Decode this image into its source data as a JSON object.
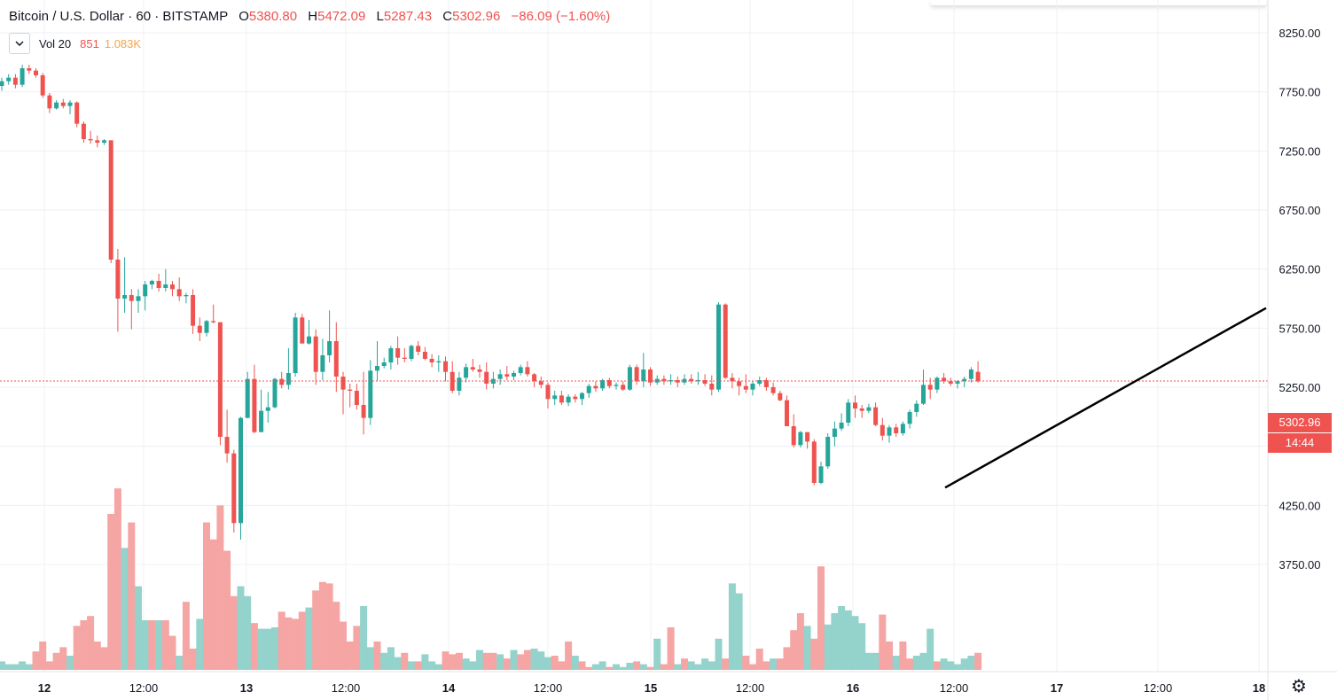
{
  "legend": {
    "symbol": "Bitcoin / U.S. Dollar · 60 · BITSTAMP",
    "open_label": "O",
    "open": "5380.80",
    "high_label": "H",
    "high": "5472.09",
    "low_label": "L",
    "low": "5287.43",
    "close_label": "C",
    "close": "5302.96",
    "change": "−86.09 (−1.60%)"
  },
  "volume_legend": {
    "collapse_icon": "chevron-down-icon",
    "name": "Vol 20",
    "value": "851",
    "ma": "1.083K"
  },
  "price_badge": {
    "price": "5302.96",
    "countdown": "14:44"
  },
  "settings_icon": "gear-icon",
  "colors": {
    "up": "#26a69a",
    "down": "#ef5350",
    "up_vol": "#93d3cc",
    "down_vol": "#f5a5a3",
    "trendline": "#000000"
  },
  "chart_data": {
    "type": "candlestick",
    "title": "Bitcoin / U.S. Dollar · 60 · BITSTAMP",
    "ylim": [
      3500,
      8400
    ],
    "y_ticks": [
      "8250.00",
      "7750.00",
      "7250.00",
      "6750.00",
      "6250.00",
      "5750.00",
      "5250.00",
      "4750.00",
      "4250.00",
      "3750.00"
    ],
    "x_ticks": [
      "12",
      "12:00",
      "13",
      "12:00",
      "14",
      "12:00",
      "15",
      "12:00",
      "16",
      "12:00",
      "17",
      "12:00",
      "18"
    ],
    "last_price": 5302.96,
    "candles": [
      [
        7800,
        7870,
        7760,
        7840
      ],
      [
        7840,
        7900,
        7810,
        7870
      ],
      [
        7870,
        7900,
        7780,
        7810
      ],
      [
        7810,
        7980,
        7790,
        7950
      ],
      [
        7950,
        7980,
        7900,
        7930
      ],
      [
        7930,
        7950,
        7870,
        7890
      ],
      [
        7890,
        7910,
        7700,
        7720
      ],
      [
        7720,
        7740,
        7570,
        7610
      ],
      [
        7610,
        7680,
        7600,
        7660
      ],
      [
        7660,
        7690,
        7610,
        7630
      ],
      [
        7630,
        7680,
        7560,
        7660
      ],
      [
        7660,
        7670,
        7450,
        7480
      ],
      [
        7480,
        7500,
        7320,
        7350
      ],
      [
        7350,
        7420,
        7310,
        7340
      ],
      [
        7340,
        7380,
        7280,
        7320
      ],
      [
        7320,
        7350,
        7300,
        7340
      ],
      [
        7340,
        7340,
        6300,
        6330
      ],
      [
        6330,
        6420,
        5720,
        6000
      ],
      [
        6000,
        6350,
        5880,
        6030
      ],
      [
        6030,
        6080,
        5740,
        5980
      ],
      [
        5980,
        6080,
        5880,
        6020
      ],
      [
        6020,
        6150,
        5900,
        6120
      ],
      [
        6120,
        6160,
        6080,
        6150
      ],
      [
        6150,
        6210,
        6060,
        6090
      ],
      [
        6090,
        6250,
        6060,
        6120
      ],
      [
        6120,
        6150,
        6020,
        6080
      ],
      [
        6080,
        6180,
        5980,
        6020
      ],
      [
        6020,
        6050,
        5960,
        6030
      ],
      [
        6030,
        6080,
        5700,
        5770
      ],
      [
        5770,
        5840,
        5640,
        5710
      ],
      [
        5710,
        5820,
        5680,
        5810
      ],
      [
        5810,
        5950,
        5790,
        5800
      ],
      [
        5800,
        5800,
        4760,
        4830
      ],
      [
        4830,
        5060,
        4610,
        4690
      ],
      [
        4690,
        4720,
        4020,
        4100
      ],
      [
        4100,
        5000,
        3960,
        4990
      ],
      [
        4990,
        5380,
        4990,
        5320
      ],
      [
        5320,
        5440,
        4860,
        4870
      ],
      [
        4870,
        5230,
        4870,
        5050
      ],
      [
        5050,
        5210,
        4950,
        5080
      ],
      [
        5080,
        5330,
        5070,
        5320
      ],
      [
        5320,
        5380,
        5240,
        5270
      ],
      [
        5270,
        5580,
        5230,
        5370
      ],
      [
        5370,
        5880,
        5340,
        5840
      ],
      [
        5840,
        5870,
        5620,
        5620
      ],
      [
        5620,
        5820,
        5610,
        5680
      ],
      [
        5680,
        5740,
        5270,
        5380
      ],
      [
        5380,
        5660,
        5310,
        5520
      ],
      [
        5520,
        5900,
        5460,
        5640
      ],
      [
        5640,
        5800,
        5210,
        5340
      ],
      [
        5340,
        5380,
        5020,
        5230
      ],
      [
        5230,
        5280,
        5080,
        5220
      ],
      [
        5220,
        5280,
        5060,
        5100
      ],
      [
        5100,
        5380,
        4850,
        4990
      ],
      [
        4990,
        5480,
        4930,
        5390
      ],
      [
        5390,
        5640,
        5300,
        5430
      ],
      [
        5430,
        5500,
        5410,
        5460
      ],
      [
        5460,
        5600,
        5400,
        5580
      ],
      [
        5580,
        5680,
        5440,
        5500
      ],
      [
        5500,
        5580,
        5460,
        5490
      ],
      [
        5490,
        5610,
        5470,
        5600
      ],
      [
        5600,
        5640,
        5520,
        5550
      ],
      [
        5550,
        5590,
        5480,
        5490
      ],
      [
        5490,
        5530,
        5420,
        5460
      ],
      [
        5460,
        5520,
        5380,
        5470
      ],
      [
        5470,
        5510,
        5300,
        5380
      ],
      [
        5380,
        5470,
        5200,
        5220
      ],
      [
        5220,
        5380,
        5180,
        5330
      ],
      [
        5330,
        5450,
        5290,
        5420
      ],
      [
        5420,
        5490,
        5380,
        5400
      ],
      [
        5400,
        5440,
        5330,
        5380
      ],
      [
        5380,
        5460,
        5230,
        5280
      ],
      [
        5280,
        5380,
        5240,
        5320
      ],
      [
        5320,
        5400,
        5270,
        5360
      ],
      [
        5360,
        5430,
        5310,
        5340
      ],
      [
        5340,
        5390,
        5310,
        5370
      ],
      [
        5370,
        5440,
        5350,
        5420
      ],
      [
        5420,
        5470,
        5340,
        5360
      ],
      [
        5360,
        5370,
        5250,
        5300
      ],
      [
        5300,
        5340,
        5240,
        5270
      ],
      [
        5270,
        5290,
        5070,
        5150
      ],
      [
        5150,
        5220,
        5100,
        5180
      ],
      [
        5180,
        5220,
        5100,
        5120
      ],
      [
        5120,
        5190,
        5090,
        5170
      ],
      [
        5170,
        5190,
        5120,
        5150
      ],
      [
        5150,
        5210,
        5100,
        5200
      ],
      [
        5200,
        5280,
        5160,
        5260
      ],
      [
        5260,
        5300,
        5210,
        5240
      ],
      [
        5240,
        5320,
        5220,
        5310
      ],
      [
        5310,
        5330,
        5240,
        5260
      ],
      [
        5260,
        5290,
        5230,
        5270
      ],
      [
        5270,
        5300,
        5220,
        5230
      ],
      [
        5230,
        5440,
        5220,
        5420
      ],
      [
        5420,
        5440,
        5270,
        5300
      ],
      [
        5300,
        5540,
        5250,
        5400
      ],
      [
        5400,
        5420,
        5260,
        5290
      ],
      [
        5290,
        5350,
        5270,
        5320
      ],
      [
        5320,
        5350,
        5270,
        5300
      ],
      [
        5300,
        5360,
        5270,
        5310
      ],
      [
        5310,
        5340,
        5250,
        5290
      ],
      [
        5290,
        5360,
        5270,
        5320
      ],
      [
        5320,
        5360,
        5280,
        5300
      ],
      [
        5300,
        5380,
        5270,
        5310
      ],
      [
        5310,
        5360,
        5260,
        5280
      ],
      [
        5280,
        5350,
        5180,
        5230
      ],
      [
        5230,
        5970,
        5210,
        5950
      ],
      [
        5950,
        5960,
        5320,
        5330
      ],
      [
        5330,
        5370,
        5240,
        5300
      ],
      [
        5300,
        5330,
        5180,
        5260
      ],
      [
        5260,
        5360,
        5200,
        5230
      ],
      [
        5230,
        5300,
        5180,
        5280
      ],
      [
        5280,
        5340,
        5260,
        5310
      ],
      [
        5310,
        5330,
        5220,
        5250
      ],
      [
        5250,
        5290,
        5180,
        5200
      ],
      [
        5200,
        5220,
        5130,
        5140
      ],
      [
        5140,
        5180,
        4930,
        4920
      ],
      [
        4920,
        5020,
        4740,
        4760
      ],
      [
        4760,
        4880,
        4740,
        4870
      ],
      [
        4870,
        4870,
        4730,
        4790
      ],
      [
        4790,
        4810,
        4420,
        4440
      ],
      [
        4440,
        4620,
        4430,
        4580
      ],
      [
        4580,
        4860,
        4560,
        4830
      ],
      [
        4830,
        4960,
        4750,
        4900
      ],
      [
        4900,
        5030,
        4880,
        4950
      ],
      [
        4950,
        5150,
        4920,
        5120
      ],
      [
        5120,
        5180,
        4990,
        5070
      ],
      [
        5070,
        5100,
        4990,
        5050
      ],
      [
        5050,
        5110,
        5030,
        5080
      ],
      [
        5080,
        5120,
        4920,
        4930
      ],
      [
        4930,
        4990,
        4800,
        4840
      ],
      [
        4840,
        4930,
        4780,
        4910
      ],
      [
        4910,
        4940,
        4830,
        4860
      ],
      [
        4860,
        4960,
        4840,
        4940
      ],
      [
        4940,
        5060,
        4900,
        5040
      ],
      [
        5040,
        5140,
        5000,
        5110
      ],
      [
        5110,
        5400,
        5100,
        5270
      ],
      [
        5270,
        5330,
        5150,
        5230
      ],
      [
        5230,
        5340,
        5200,
        5330
      ],
      [
        5330,
        5370,
        5280,
        5300
      ],
      [
        5300,
        5330,
        5260,
        5280
      ],
      [
        5280,
        5310,
        5240,
        5300
      ],
      [
        5300,
        5340,
        5250,
        5320
      ],
      [
        5320,
        5420,
        5290,
        5400
      ],
      [
        5380,
        5470,
        5290,
        5300
      ]
    ],
    "volumes": [
      [
        60,
        "u"
      ],
      [
        40,
        "u"
      ],
      [
        40,
        "u"
      ],
      [
        60,
        "u"
      ],
      [
        40,
        "u"
      ],
      [
        130,
        "d"
      ],
      [
        200,
        "d"
      ],
      [
        60,
        "d"
      ],
      [
        120,
        "d"
      ],
      [
        160,
        "d"
      ],
      [
        100,
        "u"
      ],
      [
        310,
        "d"
      ],
      [
        350,
        "d"
      ],
      [
        380,
        "d"
      ],
      [
        200,
        "d"
      ],
      [
        160,
        "d"
      ],
      [
        1100,
        "d"
      ],
      [
        1280,
        "d"
      ],
      [
        860,
        "u"
      ],
      [
        1040,
        "d"
      ],
      [
        590,
        "u"
      ],
      [
        350,
        "u"
      ],
      [
        350,
        "d"
      ],
      [
        350,
        "u"
      ],
      [
        350,
        "d"
      ],
      [
        240,
        "d"
      ],
      [
        100,
        "u"
      ],
      [
        480,
        "d"
      ],
      [
        150,
        "d"
      ],
      [
        360,
        "u"
      ],
      [
        1040,
        "d"
      ],
      [
        920,
        "d"
      ],
      [
        1160,
        "d"
      ],
      [
        840,
        "d"
      ],
      [
        520,
        "d"
      ],
      [
        590,
        "u"
      ],
      [
        520,
        "u"
      ],
      [
        330,
        "d"
      ],
      [
        290,
        "u"
      ],
      [
        290,
        "u"
      ],
      [
        300,
        "u"
      ],
      [
        410,
        "d"
      ],
      [
        370,
        "d"
      ],
      [
        360,
        "d"
      ],
      [
        410,
        "d"
      ],
      [
        440,
        "u"
      ],
      [
        560,
        "d"
      ],
      [
        620,
        "d"
      ],
      [
        610,
        "d"
      ],
      [
        480,
        "d"
      ],
      [
        340,
        "d"
      ],
      [
        200,
        "d"
      ],
      [
        310,
        "d"
      ],
      [
        450,
        "u"
      ],
      [
        160,
        "u"
      ],
      [
        200,
        "d"
      ],
      [
        120,
        "u"
      ],
      [
        160,
        "u"
      ],
      [
        90,
        "u"
      ],
      [
        120,
        "d"
      ],
      [
        60,
        "u"
      ],
      [
        60,
        "d"
      ],
      [
        110,
        "u"
      ],
      [
        60,
        "u"
      ],
      [
        40,
        "u"
      ],
      [
        130,
        "d"
      ],
      [
        110,
        "d"
      ],
      [
        120,
        "d"
      ],
      [
        80,
        "u"
      ],
      [
        60,
        "u"
      ],
      [
        140,
        "u"
      ],
      [
        120,
        "d"
      ],
      [
        120,
        "d"
      ],
      [
        110,
        "u"
      ],
      [
        80,
        "d"
      ],
      [
        140,
        "u"
      ],
      [
        110,
        "d"
      ],
      [
        140,
        "d"
      ],
      [
        150,
        "u"
      ],
      [
        130,
        "u"
      ],
      [
        90,
        "u"
      ],
      [
        100,
        "d"
      ],
      [
        60,
        "d"
      ],
      [
        200,
        "d"
      ],
      [
        100,
        "u"
      ],
      [
        60,
        "d"
      ],
      [
        20,
        "d"
      ],
      [
        40,
        "u"
      ],
      [
        60,
        "u"
      ],
      [
        20,
        "d"
      ],
      [
        40,
        "u"
      ],
      [
        20,
        "u"
      ],
      [
        50,
        "u"
      ],
      [
        60,
        "d"
      ],
      [
        40,
        "u"
      ],
      [
        20,
        "d"
      ],
      [
        220,
        "u"
      ],
      [
        40,
        "d"
      ],
      [
        300,
        "d"
      ],
      [
        40,
        "u"
      ],
      [
        80,
        "d"
      ],
      [
        60,
        "u"
      ],
      [
        40,
        "u"
      ],
      [
        80,
        "u"
      ],
      [
        60,
        "u"
      ],
      [
        220,
        "u"
      ],
      [
        80,
        "d"
      ],
      [
        610,
        "u"
      ],
      [
        540,
        "u"
      ],
      [
        100,
        "d"
      ],
      [
        40,
        "d"
      ],
      [
        150,
        "d"
      ],
      [
        60,
        "d"
      ],
      [
        80,
        "u"
      ],
      [
        80,
        "d"
      ],
      [
        160,
        "d"
      ],
      [
        280,
        "d"
      ],
      [
        400,
        "d"
      ],
      [
        310,
        "u"
      ],
      [
        220,
        "d"
      ],
      [
        730,
        "d"
      ],
      [
        320,
        "u"
      ],
      [
        400,
        "u"
      ],
      [
        450,
        "u"
      ],
      [
        420,
        "u"
      ],
      [
        380,
        "u"
      ],
      [
        330,
        "u"
      ],
      [
        120,
        "u"
      ],
      [
        120,
        "u"
      ],
      [
        390,
        "d"
      ],
      [
        200,
        "d"
      ],
      [
        100,
        "u"
      ],
      [
        200,
        "d"
      ],
      [
        80,
        "d"
      ],
      [
        100,
        "u"
      ],
      [
        120,
        "u"
      ],
      [
        290,
        "u"
      ],
      [
        60,
        "d"
      ],
      [
        80,
        "u"
      ],
      [
        60,
        "u"
      ],
      [
        40,
        "u"
      ],
      [
        80,
        "u"
      ],
      [
        100,
        "u"
      ],
      [
        120,
        "d"
      ]
    ]
  }
}
